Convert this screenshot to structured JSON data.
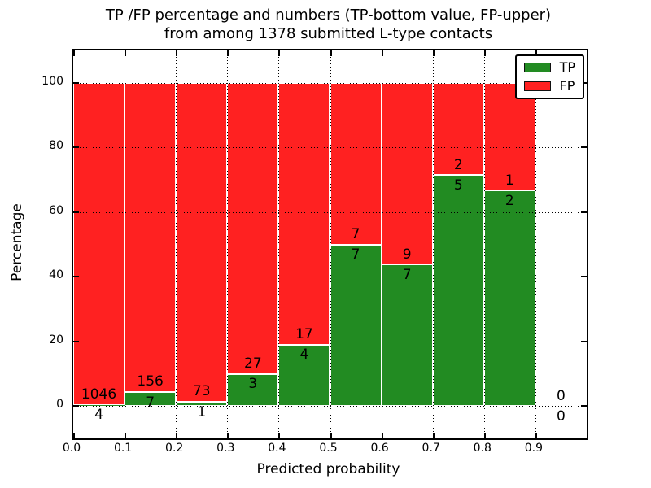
{
  "header": {
    "title_line1": "TP /FP percentage and numbers (TP-bottom value, FP-upper)",
    "title_line2": "from among 1378 submitted L-type contacts"
  },
  "axes": {
    "xlabel": "Predicted probability",
    "ylabel": "Percentage",
    "x_tick_labels": [
      "0.0",
      "0.1",
      "0.2",
      "0.3",
      "0.4",
      "0.5",
      "0.6",
      "0.7",
      "0.8",
      "0.9"
    ],
    "y_tick_labels": [
      "0",
      "20",
      "40",
      "60",
      "80",
      "100"
    ],
    "y_tick_values": [
      0,
      20,
      40,
      60,
      80,
      100
    ]
  },
  "legend": {
    "position": "upper-right",
    "items": [
      {
        "label": "TP",
        "color": "#228b22"
      },
      {
        "label": "FP",
        "color": "#ff2121"
      }
    ]
  },
  "chart_data": {
    "type": "bar",
    "variant": "stacked-100-percent",
    "title": "TP /FP percentage and numbers (TP-bottom value, FP-upper) from among 1378 submitted L-type contacts",
    "total_submitted_contacts": 1378,
    "xlabel": "Predicted probability",
    "ylabel": "Percentage",
    "bin_edges": [
      0.0,
      0.1,
      0.2,
      0.3,
      0.4,
      0.5,
      0.6,
      0.7,
      0.8,
      0.9,
      1.0
    ],
    "categories": [
      "0.0-0.1",
      "0.1-0.2",
      "0.2-0.3",
      "0.3-0.4",
      "0.4-0.5",
      "0.5-0.6",
      "0.6-0.7",
      "0.7-0.8",
      "0.8-0.9",
      "0.9-1.0"
    ],
    "series": [
      {
        "name": "TP",
        "color": "#228b22",
        "counts": [
          4,
          7,
          1,
          3,
          4,
          7,
          7,
          5,
          2,
          0
        ]
      },
      {
        "name": "FP",
        "color": "#ff2121",
        "counts": [
          1046,
          156,
          73,
          27,
          17,
          7,
          9,
          2,
          1,
          0
        ]
      }
    ],
    "tp_percent_by_bin": [
      0.38,
      4.29,
      1.35,
      10.0,
      19.05,
      50.0,
      43.75,
      71.43,
      66.67,
      null
    ],
    "xlim": [
      0.0,
      1.0
    ],
    "ylim": [
      -10,
      110
    ],
    "grid": "dotted",
    "legend_position": "upper right",
    "bar_edge_color": "#ffffff"
  }
}
